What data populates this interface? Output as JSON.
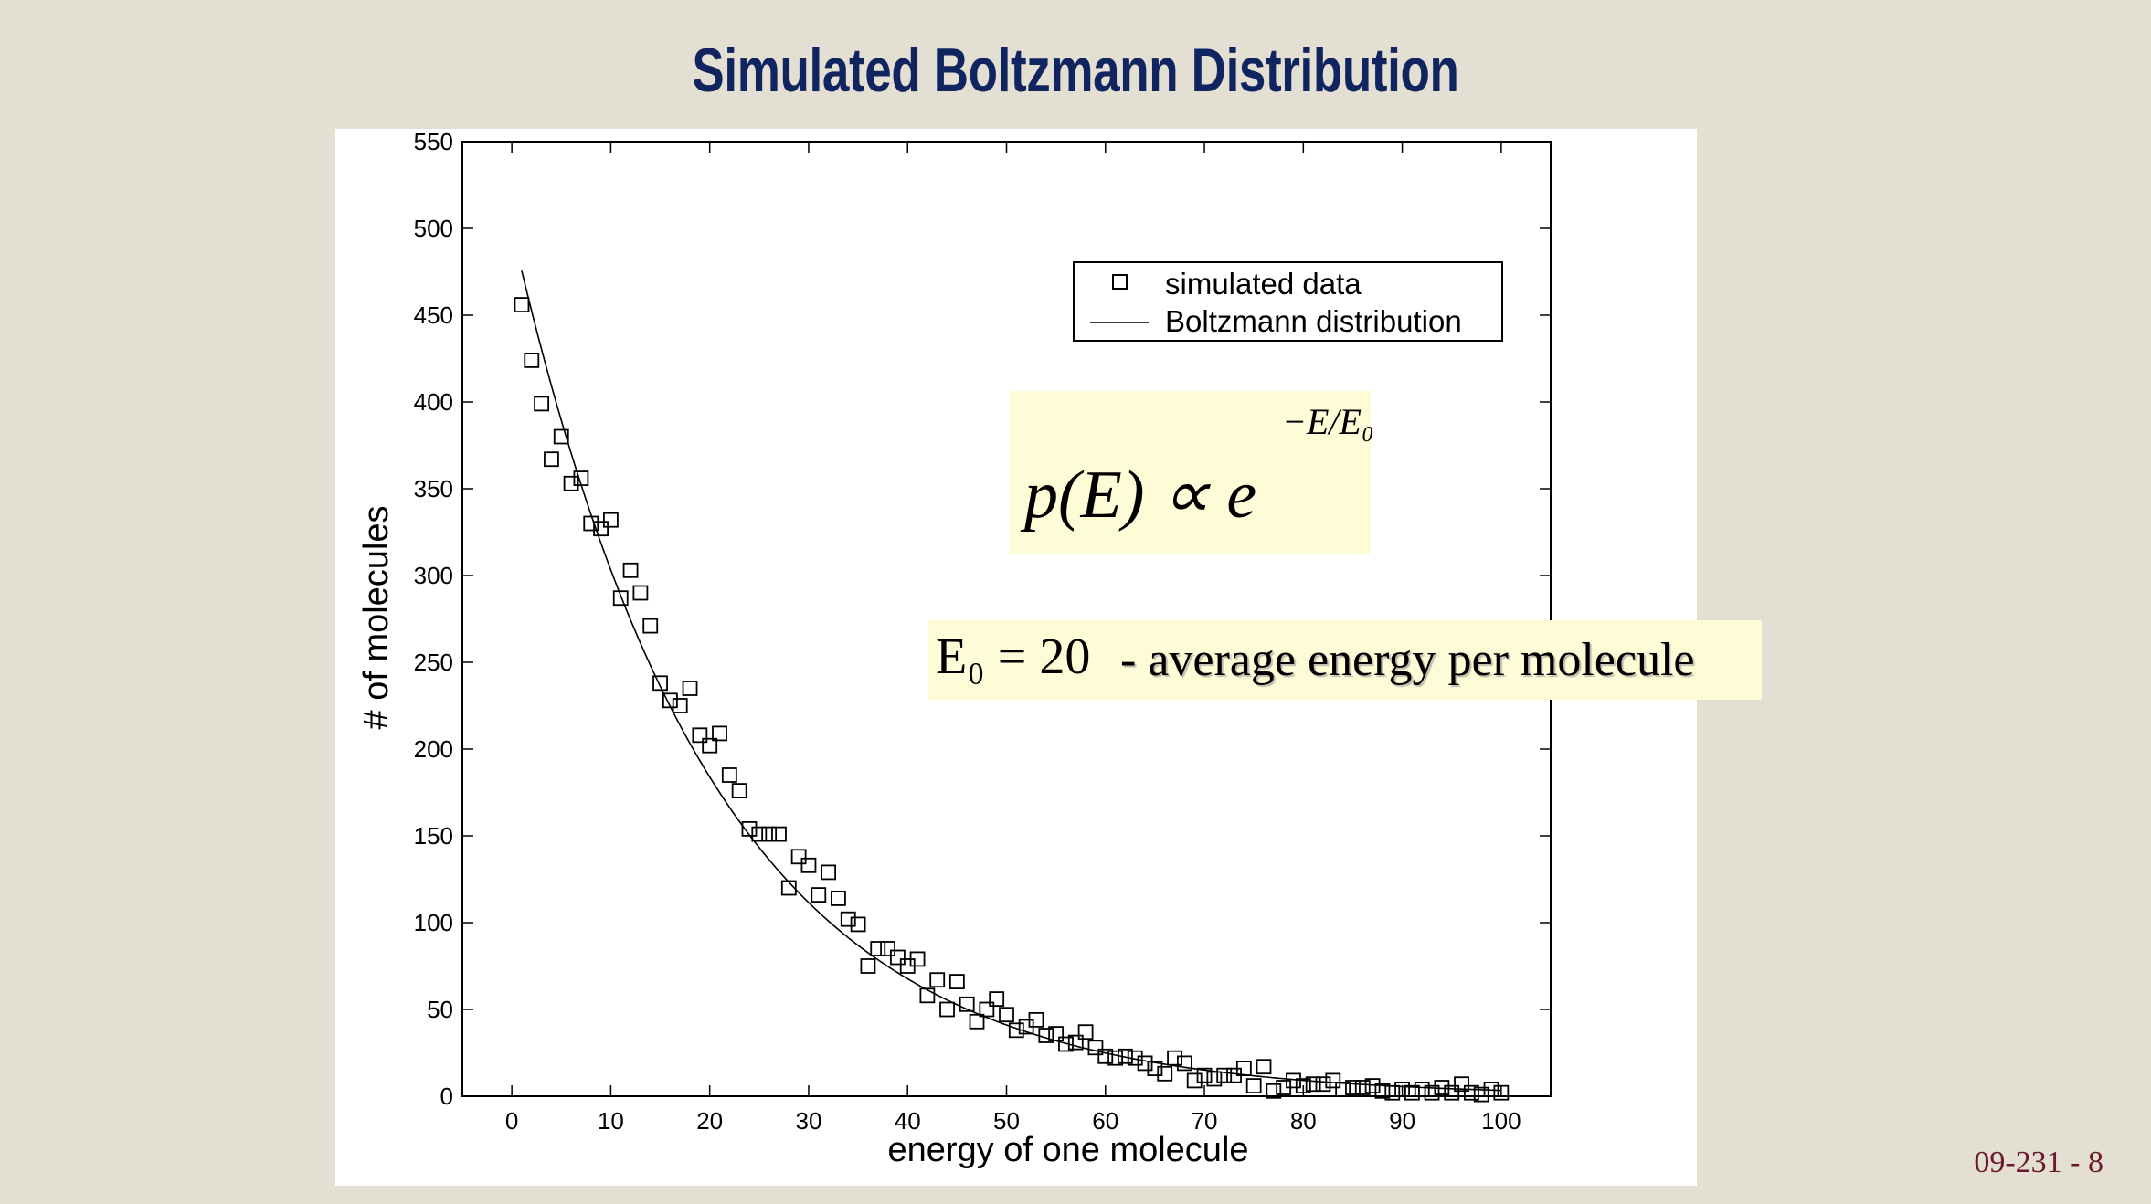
{
  "slide": {
    "title": "Simulated Boltzmann Distribution",
    "slide_number": "09-231 - 8"
  },
  "annotations": {
    "formula_main": "p(E) ∝ e",
    "formula_exponent": "−E/E₀",
    "e0_formula": "E₀ = 20",
    "e0_description": "- average energy per molecule"
  },
  "chart_data": {
    "type": "scatter",
    "title": "",
    "xlabel": "energy of one molecule",
    "ylabel": "# of molecules",
    "xlim": [
      -5,
      105
    ],
    "ylim": [
      0,
      550
    ],
    "xticks": [
      0,
      10,
      20,
      30,
      40,
      50,
      60,
      70,
      80,
      90,
      100
    ],
    "yticks": [
      0,
      50,
      100,
      150,
      200,
      250,
      300,
      350,
      400,
      450,
      500,
      550
    ],
    "grid": false,
    "legend_position": "top-right",
    "legend": [
      "simulated data",
      "Boltzmann distribution"
    ],
    "series": [
      {
        "name": "simulated data",
        "marker": "open-square",
        "x": [
          1,
          2,
          3,
          4,
          5,
          6,
          7,
          8,
          9,
          10,
          11,
          12,
          13,
          14,
          15,
          16,
          17,
          18,
          19,
          20,
          21,
          22,
          23,
          24,
          25,
          26,
          27,
          28,
          29,
          30,
          31,
          32,
          33,
          34,
          35,
          36,
          37,
          38,
          39,
          40,
          41,
          42,
          43,
          44,
          45,
          46,
          47,
          48,
          49,
          50,
          51,
          52,
          53,
          54,
          55,
          56,
          57,
          58,
          59,
          60,
          61,
          62,
          63,
          64,
          65,
          66,
          67,
          68,
          69,
          70,
          71,
          72,
          73,
          74,
          75,
          76,
          77,
          78,
          79,
          80,
          81,
          82,
          83,
          84,
          85,
          86,
          87,
          88,
          89,
          90,
          91,
          92,
          93,
          94,
          95,
          96,
          97,
          98,
          99,
          100
        ],
        "y": [
          456,
          424,
          399,
          367,
          380,
          353,
          356,
          330,
          327,
          332,
          287,
          303,
          290,
          271,
          238,
          228,
          225,
          235,
          208,
          202,
          209,
          185,
          176,
          154,
          151,
          151,
          151,
          120,
          138,
          133,
          116,
          129,
          114,
          102,
          99,
          75,
          85,
          85,
          80,
          75,
          79,
          58,
          67,
          50,
          66,
          53,
          43,
          50,
          56,
          47,
          38,
          40,
          44,
          35,
          36,
          30,
          31,
          37,
          28,
          23,
          22,
          23,
          22,
          19,
          16,
          13,
          22,
          19,
          9,
          12,
          10,
          12,
          12,
          16,
          6,
          17,
          3,
          5,
          9,
          6,
          7,
          7,
          9,
          4,
          5,
          5,
          6,
          3,
          2,
          4,
          2,
          4,
          2,
          5,
          2,
          7,
          2,
          1,
          4,
          2
        ]
      },
      {
        "name": "Boltzmann distribution",
        "type": "line",
        "function": "y = 500 * exp(-x / 20)",
        "x_range": [
          1,
          100
        ]
      }
    ]
  }
}
